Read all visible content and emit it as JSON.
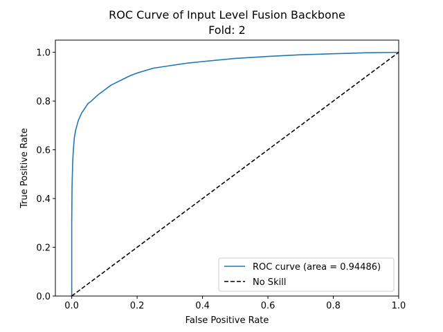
{
  "chart_data": {
    "type": "line",
    "title": "ROC Curve of Input Level Fusion Backbone",
    "subtitle": "Fold: 2",
    "xlabel": "False Positive Rate",
    "ylabel": "True Positive Rate",
    "xlim": [
      -0.05,
      1.0
    ],
    "ylim": [
      0.0,
      1.05
    ],
    "x_ticks": [
      0.0,
      0.2,
      0.4,
      0.6,
      0.8,
      1.0
    ],
    "y_ticks": [
      0.0,
      0.2,
      0.4,
      0.6,
      0.8,
      1.0
    ],
    "x_tick_labels": [
      "0.0",
      "0.2",
      "0.4",
      "0.6",
      "0.8",
      "1.0"
    ],
    "y_tick_labels": [
      "0.0",
      "0.2",
      "0.4",
      "0.6",
      "0.8",
      "1.0"
    ],
    "grid": false,
    "legend_position": "lower-right",
    "series": [
      {
        "name": "ROC curve (area = 0.94486)",
        "color": "#1f77b4",
        "style": "solid",
        "x": [
          0.0,
          0.0,
          0.001,
          0.002,
          0.003,
          0.005,
          0.008,
          0.012,
          0.016,
          0.02,
          0.03,
          0.04,
          0.05,
          0.06,
          0.08,
          0.1,
          0.12,
          0.15,
          0.18,
          0.2,
          0.25,
          0.3,
          0.35,
          0.4,
          0.5,
          0.6,
          0.7,
          0.8,
          0.9,
          1.0
        ],
        "y": [
          0.0,
          0.3,
          0.45,
          0.5,
          0.55,
          0.6,
          0.65,
          0.68,
          0.7,
          0.72,
          0.75,
          0.77,
          0.79,
          0.8,
          0.825,
          0.845,
          0.865,
          0.885,
          0.905,
          0.915,
          0.935,
          0.945,
          0.955,
          0.962,
          0.975,
          0.983,
          0.99,
          0.994,
          0.998,
          1.0
        ]
      },
      {
        "name": "No Skill",
        "color": "#000000",
        "style": "dashed",
        "x": [
          0.0,
          1.0
        ],
        "y": [
          0.0,
          1.0
        ]
      }
    ]
  }
}
